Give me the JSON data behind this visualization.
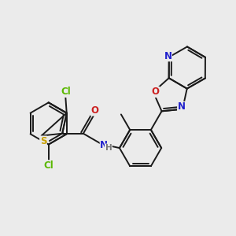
{
  "bg_color": "#ebebeb",
  "bond_color": "#1a1a1a",
  "lw": 1.4,
  "atom_colors": {
    "Cl": "#5ab800",
    "S": "#c8a000",
    "N": "#2020cc",
    "O": "#cc2020",
    "H": "#777777"
  },
  "font_size": 8.5
}
